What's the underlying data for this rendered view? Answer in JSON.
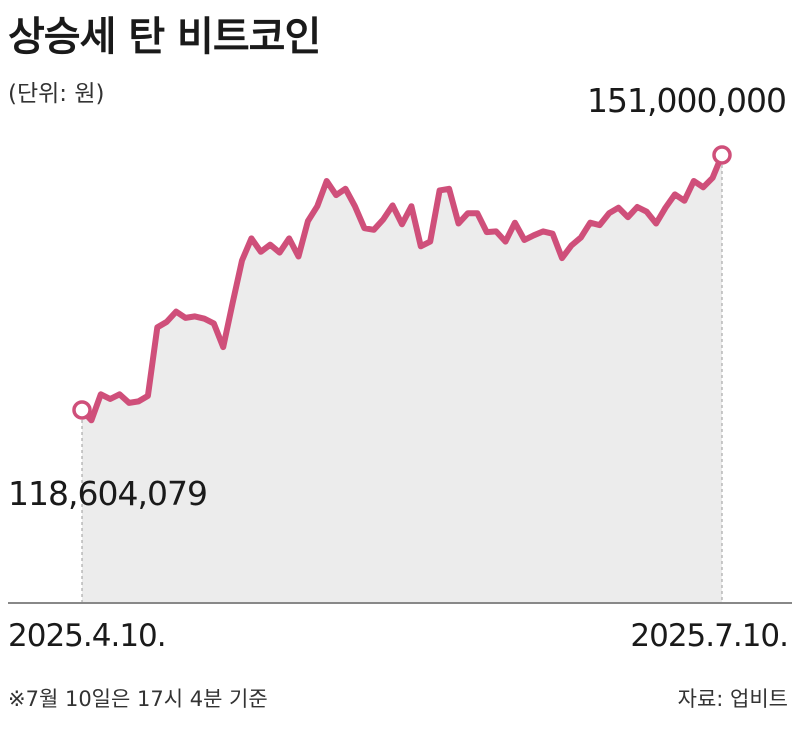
{
  "title": "상승세 탄 비트코인",
  "unit_label": "(단위: 원)",
  "footnote": "※7월 10일은 17시 4분 기준",
  "source": "자료: 업비트",
  "colors": {
    "line": "#cf4f7a",
    "area": "#ececec",
    "axis": "#888888"
  },
  "chart_data": {
    "type": "area",
    "title": "상승세 탄 비트코인",
    "ylabel": "(단위: 원)",
    "x_start_label": "2025.4.10.",
    "x_end_label": "2025.7.10.",
    "start_value_label": "118,604,079",
    "end_value_label": "151,000,000",
    "ylim": [
      100000000,
      160000000
    ],
    "values": [
      118604079,
      117300000,
      120600000,
      120000000,
      120600000,
      119500000,
      119700000,
      120400000,
      129100000,
      129800000,
      131100000,
      130300000,
      130500000,
      130200000,
      129600000,
      126600000,
      132200000,
      137600000,
      140400000,
      138700000,
      139600000,
      138600000,
      140400000,
      138100000,
      142600000,
      144500000,
      147700000,
      145900000,
      146700000,
      144500000,
      141700000,
      141500000,
      142800000,
      144600000,
      142200000,
      144500000,
      139400000,
      140000000,
      146500000,
      146700000,
      142300000,
      143600000,
      143600000,
      141200000,
      141300000,
      140000000,
      142400000,
      140200000,
      140800000,
      141300000,
      141000000,
      137900000,
      139500000,
      140500000,
      142400000,
      142100000,
      143600000,
      144300000,
      143100000,
      144400000,
      143800000,
      142300000,
      144300000,
      146000000,
      145200000,
      147700000,
      146900000,
      148100000,
      151000000
    ]
  }
}
